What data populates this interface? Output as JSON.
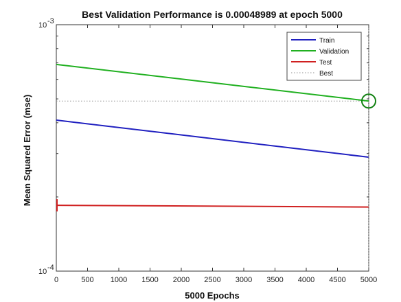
{
  "chart_data": {
    "type": "line",
    "title": "Best Validation Performance is 0.00048989 at epoch 5000",
    "xlabel": "5000 Epochs",
    "ylabel": "Mean Squared Error  (mse)",
    "x_scale": "linear",
    "y_scale": "log",
    "xlim": [
      0,
      5000
    ],
    "ylim": [
      0.0001,
      0.001
    ],
    "x_ticks": [
      0,
      500,
      1000,
      1500,
      2000,
      2500,
      3000,
      3500,
      4000,
      4500,
      5000
    ],
    "y_ticks": [
      {
        "value": 0.0001,
        "base": "10",
        "exp": "-4"
      },
      {
        "value": 0.001,
        "base": "10",
        "exp": "-3"
      }
    ],
    "grid": false,
    "legend_position": "top-right",
    "series": [
      {
        "name": "Train",
        "color": "#2020c0",
        "style": "solid",
        "x": [
          0,
          5000
        ],
        "y": [
          0.00041,
          0.00029
        ]
      },
      {
        "name": "Validation",
        "color": "#20b020",
        "style": "solid",
        "x": [
          0,
          5000
        ],
        "y": [
          0.00069,
          0.00049
        ]
      },
      {
        "name": "Test",
        "color": "#d02020",
        "style": "solid",
        "x": [
          0,
          5000
        ],
        "y": [
          0.000185,
          0.000182
        ]
      },
      {
        "name": "Best",
        "color": "#909090",
        "style": "dotted",
        "x": [
          0,
          5000
        ],
        "y": [
          0.00048989,
          0.00048989
        ]
      }
    ],
    "best_point": {
      "epoch": 5000,
      "value": 0.00048989,
      "marker": "circle",
      "color": "#108010"
    }
  }
}
